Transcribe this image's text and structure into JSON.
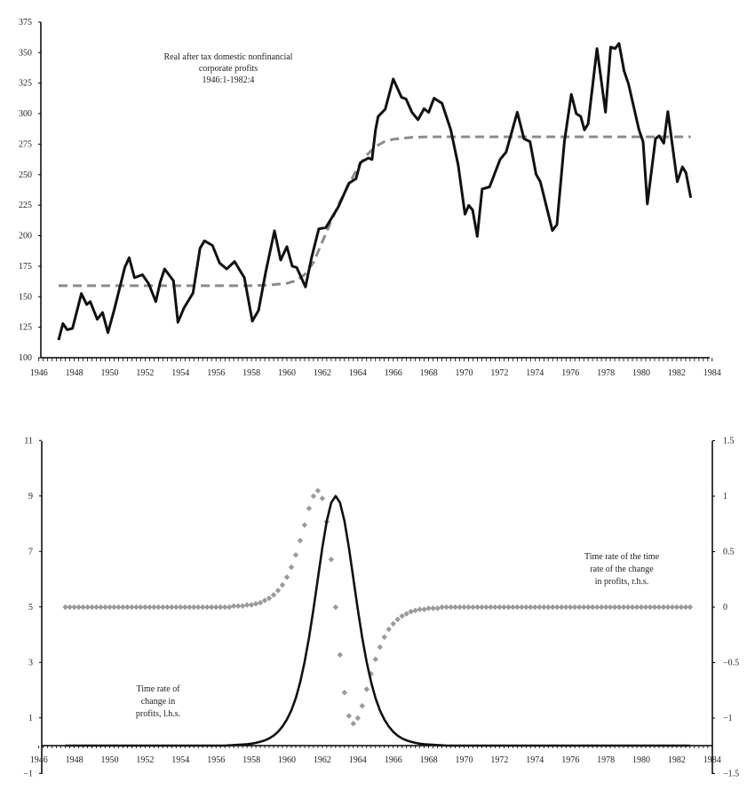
{
  "chart_data": [
    {
      "type": "line",
      "title": [
        "Real after tax domestic nonfinancial",
        "corporate profits",
        "1946:1-1982:4"
      ],
      "xlim": [
        1946,
        1984
      ],
      "ylim": [
        100,
        375
      ],
      "x_ticks": [
        "1946",
        "1948",
        "1950",
        "1952",
        "1954",
        "1956",
        "1958",
        "1960",
        "1962",
        "1964",
        "1966",
        "1968",
        "1970",
        "1972",
        "1974",
        "1976",
        "1978",
        "1980",
        "1982",
        "1984"
      ],
      "y_ticks": [
        "100",
        "125",
        "150",
        "175",
        "200",
        "225",
        "250",
        "275",
        "300",
        "325",
        "350",
        "375"
      ],
      "grid": false,
      "colors": {
        "profits": "#111111",
        "trend": "#8c8c8c"
      },
      "series": [
        {
          "style": "solid",
          "x": [
            1947.12,
            1947.36,
            1947.6,
            1947.9,
            1948.2,
            1948.4,
            1948.7,
            1948.9,
            1949.3,
            1949.6,
            1949.9,
            1950.25,
            1950.85,
            1951.1,
            1951.4,
            1951.85,
            1952.2,
            1952.6,
            1952.85,
            1953.1,
            1953.6,
            1953.85,
            1954.2,
            1954.7,
            1955.1,
            1955.35,
            1955.8,
            1956.2,
            1956.6,
            1957.05,
            1957.4,
            1957.6,
            1958.05,
            1958.4,
            1958.8,
            1959.3,
            1959.65,
            1960.0,
            1960.3,
            1960.55,
            1961.05,
            1961.4,
            1961.8,
            1962.2,
            1962.9,
            1963.5,
            1963.9,
            1964.15,
            1964.6,
            1964.8,
            1965.0,
            1965.15,
            1965.55,
            1966.0,
            1966.47,
            1966.72,
            1967.06,
            1967.4,
            1967.74,
            1968.0,
            1968.3,
            1968.75,
            1969.25,
            1969.67,
            1970.05,
            1970.26,
            1970.48,
            1970.74,
            1971.02,
            1971.44,
            1972.03,
            1972.37,
            1973.0,
            1973.38,
            1973.72,
            1974.06,
            1974.3,
            1974.98,
            1975.24,
            1975.66,
            1976.05,
            1976.33,
            1976.58,
            1976.79,
            1977.0,
            1977.5,
            1977.98,
            1978.27,
            1978.52,
            1978.74,
            1979.03,
            1979.28,
            1979.87,
            1980.1,
            1980.34,
            1980.8,
            1981.0,
            1981.27,
            1981.5,
            1982.03,
            1982.32,
            1982.52,
            1982.79
          ],
          "y": [
            114.5,
            128,
            123,
            124,
            141,
            152.6,
            143.6,
            146,
            131.5,
            137,
            120.6,
            139,
            174,
            182,
            165.5,
            168,
            160.6,
            146,
            162,
            172.7,
            163,
            129,
            141,
            153,
            189.7,
            195.8,
            192,
            177.6,
            172.7,
            178.8,
            170.3,
            165.5,
            130,
            138.8,
            170,
            204,
            180,
            191,
            175,
            174,
            158,
            182.4,
            205.5,
            206.7,
            223.6,
            243,
            246.7,
            260,
            263.6,
            262.4,
            286.7,
            297.6,
            303.6,
            328.4,
            313.3,
            312,
            301,
            295,
            304,
            301,
            312.6,
            308.5,
            286.7,
            257.6,
            217.6,
            224.8,
            221,
            199.4,
            238.2,
            240,
            262.4,
            268.5,
            301.2,
            279.4,
            277,
            250.3,
            244.2,
            204.2,
            209,
            277,
            315.8,
            300,
            297.6,
            286.7,
            291.5,
            353.3,
            301.2,
            354.5,
            353.3,
            357.5,
            335,
            324.2,
            286.7,
            277,
            226,
            279.4,
            281.8,
            275.8,
            301.7,
            244.2,
            256.4,
            251.5,
            231
          ]
        },
        {
          "style": "dashed",
          "x": [
            1947.12,
            1958,
            1959,
            1960,
            1960.5,
            1961,
            1961.5,
            1962,
            1962.5,
            1963,
            1963.5,
            1964,
            1964.5,
            1965,
            1965.5,
            1966,
            1967,
            1968,
            1970,
            1982.79
          ],
          "y": [
            159,
            159,
            159.5,
            161,
            163,
            168,
            178,
            195,
            212,
            228,
            242,
            256,
            266,
            273,
            277,
            279,
            280.5,
            281,
            281,
            281
          ]
        }
      ]
    },
    {
      "type": "line",
      "xlim": [
        1946,
        1984
      ],
      "ylim_left": [
        -1,
        11
      ],
      "ylim_right": [
        -1.5,
        1.5
      ],
      "x_ticks": [
        "1946",
        "1948",
        "1950",
        "1952",
        "1954",
        "1956",
        "1958",
        "1960",
        "1962",
        "1964",
        "1966",
        "1968",
        "1970",
        "1972",
        "1974",
        "1976",
        "1978",
        "1980",
        "1982",
        "1984"
      ],
      "y_ticks_left": [
        "11",
        "9",
        "7",
        "5",
        "3",
        "1",
        "−1"
      ],
      "y_ticks_right": [
        "1.5",
        "1",
        "0.5",
        "0",
        "−0.5",
        "−1",
        "−1.5"
      ],
      "grid": false,
      "colors": {
        "rate": "#111111",
        "rate_of_rate": "#9a9a9a"
      },
      "annotations": {
        "left": [
          "Time rate of",
          "change in",
          "profits, l.h.s."
        ],
        "right": [
          "Time rate of the time",
          "rate of the change",
          "in profits, r.h.s."
        ]
      },
      "x_start": 1947.5,
      "x_step": 0.25,
      "series": [
        {
          "axis": "left",
          "style": "solid",
          "values": [
            0,
            0,
            0,
            0,
            0,
            0,
            0,
            0,
            0,
            0,
            0,
            0,
            0,
            0,
            0,
            0,
            0,
            0,
            0,
            0,
            0,
            0,
            0,
            0,
            0,
            0,
            0,
            0,
            0,
            0,
            0,
            0,
            0,
            0,
            0,
            0,
            0,
            0.01,
            0.02,
            0.03,
            0.04,
            0.05,
            0.07,
            0.1,
            0.14,
            0.19,
            0.26,
            0.36,
            0.5,
            0.69,
            0.94,
            1.27,
            1.71,
            2.29,
            3.01,
            3.89,
            4.92,
            6.03,
            7.14,
            8.1,
            8.76,
            9.0,
            8.76,
            8.1,
            7.14,
            6.03,
            4.92,
            3.89,
            3.01,
            2.29,
            1.71,
            1.27,
            0.94,
            0.69,
            0.5,
            0.36,
            0.26,
            0.19,
            0.14,
            0.1,
            0.07,
            0.05,
            0.04,
            0.03,
            0.02,
            0.01,
            0,
            0,
            0,
            0,
            0,
            0,
            0,
            0,
            0,
            0,
            0,
            0,
            0,
            0,
            0,
            0,
            0,
            0,
            0,
            0,
            0,
            0,
            0,
            0,
            0,
            0,
            0,
            0,
            0,
            0,
            0,
            0,
            0,
            0,
            0,
            0,
            0,
            0,
            0,
            0,
            0,
            0,
            0,
            0,
            0,
            0,
            0,
            0,
            0,
            0,
            0,
            0,
            0,
            0,
            0,
            0
          ]
        },
        {
          "axis": "right",
          "style": "dots",
          "values": [
            0,
            0,
            0,
            0,
            0,
            0,
            0,
            0,
            0,
            0,
            0,
            0,
            0,
            0,
            0,
            0,
            0,
            0,
            0,
            0,
            0,
            0,
            0,
            0,
            0,
            0,
            0,
            0,
            0,
            0,
            0,
            0,
            0,
            0,
            0,
            0,
            0,
            0,
            0.01,
            0.01,
            0.01,
            0.02,
            0.02,
            0.03,
            0.04,
            0.06,
            0.08,
            0.11,
            0.15,
            0.2,
            0.27,
            0.36,
            0.47,
            0.6,
            0.74,
            0.89,
            1.0,
            1.05,
            0.98,
            0.77,
            0.43,
            0,
            -0.43,
            -0.77,
            -0.98,
            -1.05,
            -1.0,
            -0.89,
            -0.74,
            -0.6,
            -0.47,
            -0.36,
            -0.27,
            -0.2,
            -0.15,
            -0.11,
            -0.08,
            -0.06,
            -0.04,
            -0.03,
            -0.02,
            -0.02,
            -0.01,
            -0.01,
            -0.01,
            0,
            0,
            0,
            0,
            0,
            0,
            0,
            0,
            0,
            0,
            0,
            0,
            0,
            0,
            0,
            0,
            0,
            0,
            0,
            0,
            0,
            0,
            0,
            0,
            0,
            0,
            0,
            0,
            0,
            0,
            0,
            0,
            0,
            0,
            0,
            0,
            0,
            0,
            0,
            0,
            0,
            0,
            0,
            0,
            0,
            0,
            0,
            0,
            0,
            0,
            0,
            0,
            0,
            0,
            0,
            0,
            0
          ]
        }
      ]
    }
  ]
}
